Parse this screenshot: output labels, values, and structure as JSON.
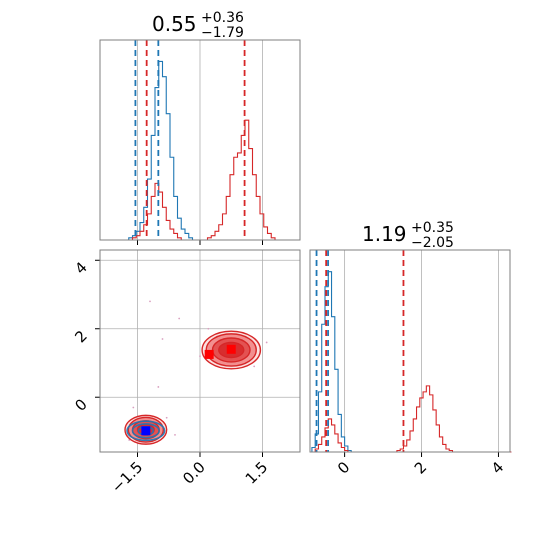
{
  "chart_data": {
    "type": "corner",
    "colors": {
      "blue": "#1f77b4",
      "red": "#d62728",
      "red_fill": "#f08080",
      "blue_marker": "#0000ff",
      "red_marker": "#ff0000"
    },
    "grid": true,
    "titles": [
      {
        "value": "0.55",
        "sup": "+0.36",
        "sub": "−1.79"
      },
      {
        "value": "1.19",
        "sup": "+0.35",
        "sub": "−2.05"
      }
    ],
    "x_param1": {
      "range": [
        -2.4,
        2.4
      ],
      "ticks": [
        -1.5,
        0.0,
        1.5
      ],
      "tick_labels": [
        "−1.5",
        "0.0",
        "1.5"
      ]
    },
    "x_param2": {
      "range": [
        -0.9,
        4.3
      ],
      "ticks": [
        0,
        2,
        4
      ],
      "tick_labels": [
        "0",
        "2",
        "4"
      ]
    },
    "y_param2": {
      "range": [
        -1.6,
        4.3
      ],
      "ticks": [
        0,
        2,
        4
      ],
      "tick_labels": [
        "0",
        "2",
        "4"
      ]
    },
    "hist_param1": {
      "bin_start": -1.8,
      "bin_width": 0.09,
      "series": [
        {
          "color": "blue",
          "counts": [
            0,
            1,
            2,
            4,
            8,
            15,
            28,
            48,
            70,
            82,
            75,
            58,
            38,
            20,
            10,
            5,
            3,
            1,
            0,
            0,
            0,
            0,
            0,
            0,
            0,
            0,
            0,
            0,
            0,
            0,
            0,
            0,
            0,
            0,
            0,
            0,
            0,
            0,
            0,
            0,
            0,
            0
          ]
        },
        {
          "color": "red",
          "counts": [
            0,
            0,
            1,
            2,
            4,
            7,
            12,
            20,
            26,
            22,
            15,
            9,
            5,
            3,
            1,
            0,
            0,
            0,
            0,
            0,
            0,
            0,
            1,
            2,
            4,
            7,
            12,
            20,
            30,
            38,
            40,
            48,
            55,
            42,
            30,
            20,
            12,
            6,
            3,
            1,
            0,
            0
          ]
        }
      ],
      "vlines": [
        {
          "color": "blue",
          "x": -1.55
        },
        {
          "color": "red",
          "x": -1.28
        },
        {
          "color": "blue",
          "x": -1.0
        },
        {
          "color": "red",
          "x": 1.07
        }
      ]
    },
    "hist_param2": {
      "bin_start": -0.85,
      "bin_width": 0.085,
      "series": [
        {
          "color": "blue",
          "counts": [
            3,
            12,
            40,
            85,
            110,
            120,
            90,
            55,
            25,
            10,
            4,
            1,
            0,
            0,
            0,
            0,
            0,
            0,
            0,
            0,
            0,
            0,
            0,
            0,
            0,
            0,
            0,
            0,
            0,
            0,
            0,
            0,
            0,
            0,
            0,
            0,
            0,
            0,
            0,
            0,
            0,
            0,
            0,
            0,
            0,
            0,
            0,
            0,
            0,
            0,
            0,
            0,
            0,
            0,
            0,
            0,
            0,
            0,
            0,
            0,
            0
          ]
        },
        {
          "color": "red",
          "counts": [
            0,
            2,
            5,
            10,
            16,
            22,
            18,
            12,
            6,
            3,
            1,
            0,
            0,
            0,
            0,
            0,
            0,
            0,
            0,
            0,
            0,
            0,
            0,
            0,
            0,
            0,
            1,
            2,
            4,
            8,
            14,
            22,
            30,
            36,
            40,
            44,
            38,
            28,
            18,
            10,
            5,
            2,
            1,
            0,
            0,
            0,
            0,
            0,
            0,
            0,
            0,
            0,
            0,
            0,
            0,
            0,
            0,
            0,
            0,
            0,
            0
          ]
        }
      ],
      "vlines": [
        {
          "color": "blue",
          "x": -0.73
        },
        {
          "color": "red",
          "x": -0.48
        },
        {
          "color": "blue",
          "x": -0.43
        },
        {
          "color": "red",
          "x": 1.53
        }
      ]
    },
    "scatter_2d": {
      "red_modes": [
        {
          "cx": 0.75,
          "cy": 1.38,
          "rx": [
            0.3,
            0.45,
            0.6,
            0.7
          ],
          "ry": [
            0.22,
            0.35,
            0.47,
            0.55
          ]
        },
        {
          "cx": -1.3,
          "cy": -0.95,
          "rx": [
            0.2,
            0.32,
            0.42,
            0.5
          ],
          "ry": [
            0.16,
            0.26,
            0.36,
            0.42
          ]
        }
      ],
      "blue_modes": [
        {
          "cx": -1.3,
          "cy": -0.98,
          "rx": [
            0.18,
            0.32,
            0.45
          ],
          "ry": [
            0.12,
            0.2,
            0.28
          ]
        }
      ],
      "markers": [
        {
          "shape": "square",
          "color": "red_marker",
          "x": 0.22,
          "y": 1.25
        },
        {
          "shape": "square",
          "color": "red_marker",
          "x": 0.75,
          "y": 1.4
        },
        {
          "shape": "square",
          "color": "blue_marker",
          "x": -1.3,
          "y": -0.98
        }
      ],
      "outliers": [
        {
          "x": -1.2,
          "y": 2.8
        },
        {
          "x": -0.5,
          "y": 2.3
        },
        {
          "x": -0.9,
          "y": 1.7
        },
        {
          "x": 1.6,
          "y": 1.6
        },
        {
          "x": 0.0,
          "y": 1.2
        },
        {
          "x": -1.6,
          "y": -0.3
        },
        {
          "x": -0.8,
          "y": -0.6
        },
        {
          "x": -1.7,
          "y": -1.25
        },
        {
          "x": -0.6,
          "y": -1.1
        },
        {
          "x": 1.3,
          "y": 0.9
        },
        {
          "x": -1.0,
          "y": 0.3
        },
        {
          "x": 0.2,
          "y": 2.0
        }
      ]
    }
  }
}
